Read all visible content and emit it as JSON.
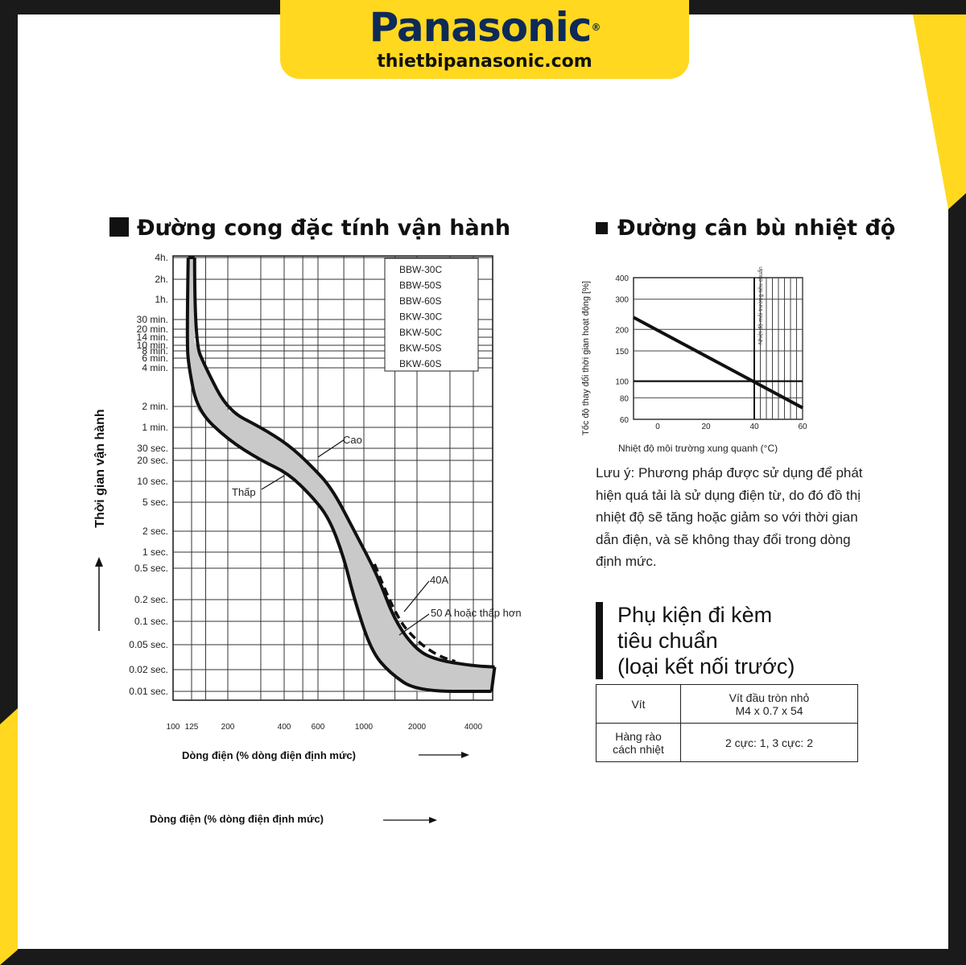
{
  "brand": {
    "name": "Panasonic",
    "registered": "®",
    "website": "thietbipanasonic.com"
  },
  "colors": {
    "yellow": "#ffd81f",
    "navy": "#0e2a57",
    "band_fill": "#c9c9c9",
    "dark": "#1a1a1a",
    "panel": "#ffffff"
  },
  "chart_data": [
    {
      "type": "line",
      "title": "Đường cong đặc tính vận hành",
      "xlabel": "Dòng điện (% dòng điện định mức)",
      "ylabel": "Thời gian vận hành",
      "x_scale": "log",
      "y_scale": "log",
      "x_ticks": [
        "100",
        "125",
        "200",
        "400",
        "600",
        "1000",
        "2000",
        "4000"
      ],
      "y_ticks": [
        "4h.",
        "2h.",
        "1h.",
        "30 min.",
        "20 min.",
        "14 min.",
        "10 min.",
        "8 min.",
        "6 min.",
        "4 min.",
        "2 min.",
        "1 min.",
        "30 sec.",
        "20 sec.",
        "10 sec.",
        "5 sec.",
        "2 sec.",
        "1 sec.",
        "0.5 sec.",
        "0.2 sec.",
        "0.1 sec.",
        "0.05 sec.",
        "0.02 sec.",
        "0.01 sec."
      ],
      "legend_models": [
        "BBW-30C",
        "BBW-50S",
        "BBW-60S",
        "BKW-30C",
        "BKW-50C",
        "BKW-50S",
        "BKW-60S"
      ],
      "grid": true,
      "series": [
        {
          "name": "Cao",
          "points": [
            [
              130,
              14400
            ],
            [
              130,
              700
            ],
            [
              150,
              240
            ],
            [
              200,
              105
            ],
            [
              300,
              60
            ],
            [
              420,
              34
            ],
            [
              550,
              17
            ],
            [
              700,
              8
            ],
            [
              900,
              2
            ],
            [
              1200,
              0.4
            ],
            [
              1500,
              0.1
            ],
            [
              2000,
              0.04
            ],
            [
              2600,
              0.028
            ],
            [
              4000,
              0.023
            ],
            [
              5200,
              0.022
            ]
          ]
        },
        {
          "name": "Thấp",
          "points": [
            [
              120,
              14400
            ],
            [
              118,
              700
            ],
            [
              121,
              240
            ],
            [
              135,
              105
            ],
            [
              200,
              40
            ],
            [
              300,
              20
            ],
            [
              420,
              13
            ],
            [
              560,
              6
            ],
            [
              680,
              3
            ],
            [
              800,
              0.8
            ],
            [
              900,
              0.2
            ],
            [
              1100,
              0.04
            ],
            [
              1400,
              0.018
            ],
            [
              2000,
              0.01
            ],
            [
              5000,
              0.01
            ]
          ]
        },
        {
          "name": "40A",
          "style": "dashed",
          "points": [
            [
              1150,
              0.6
            ],
            [
              1500,
              0.12
            ],
            [
              2000,
              0.055
            ],
            [
              2600,
              0.033
            ],
            [
              3200,
              0.027
            ]
          ]
        }
      ],
      "annotations": [
        "Cao",
        "Thấp",
        "40A",
        "50 A hoặc thấp hơn"
      ],
      "repeated_label": "Dòng điện (% dòng điện định mức)"
    },
    {
      "type": "line",
      "title": "Đường cân bù nhiệt độ",
      "xlabel": "Nhiệt độ môi trường xung quanh (°C)",
      "ylabel": "Tốc độ thay đổi thời gian hoạt động [%]",
      "y_scale": "log",
      "x_ticks": [
        "0",
        "20",
        "40",
        "60"
      ],
      "y_ticks": [
        "400",
        "300",
        "200",
        "150",
        "100",
        "80",
        "60"
      ],
      "xlim": [
        -10,
        60
      ],
      "ylim": [
        60,
        400
      ],
      "reference_label": "Nhiệt độ môi trường tiêu chuẩn",
      "series": [
        {
          "x": [
            -10,
            60
          ],
          "y": [
            235,
            70
          ]
        }
      ]
    }
  ],
  "note": "Lưu ý: Phương pháp được sử dụng để phát hiện quá tải là sử dụng điện từ, do đó đồ thị nhiệt độ sẽ tăng hoặc giảm so với thời gian dẫn điện, và sẽ không thay đổi trong dòng định mức.",
  "accessories": {
    "title_lines": [
      "Phụ kiện đi kèm",
      "tiêu chuẩn",
      "(loại kết nối trước)"
    ],
    "rows": [
      {
        "item": "Vít",
        "detail_lines": [
          "Vít đầu tròn nhỏ",
          "M4 x 0.7 x 54"
        ]
      },
      {
        "item_lines": [
          "Hàng rào",
          "cách nhiệt"
        ],
        "detail": "2 cực: 1, 3 cực: 2"
      }
    ]
  }
}
